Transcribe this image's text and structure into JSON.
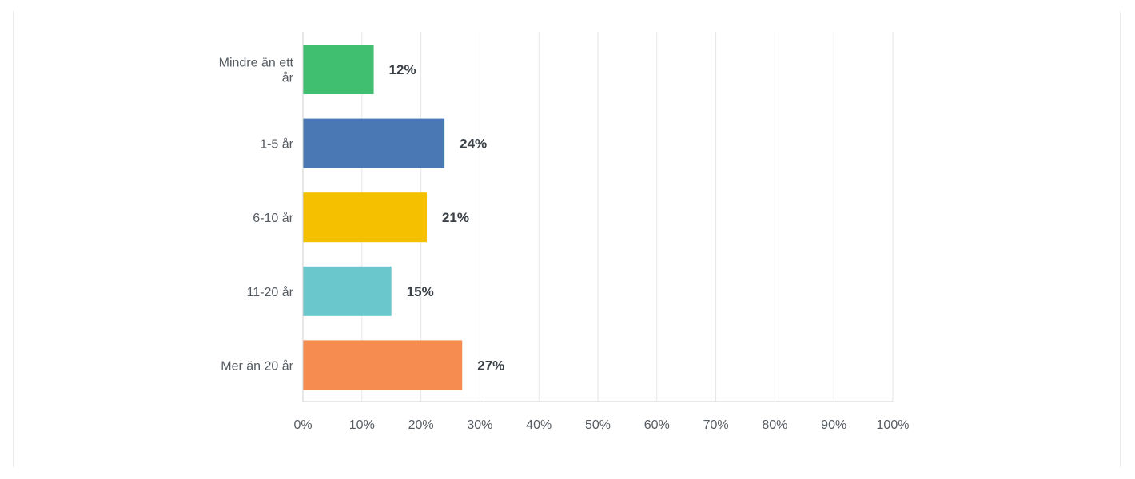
{
  "chart_data": {
    "type": "bar",
    "orientation": "horizontal",
    "categories": [
      [
        "Mindre än ett",
        "år"
      ],
      [
        "1-5 år"
      ],
      [
        "6-10 år"
      ],
      [
        "11-20 år"
      ],
      [
        "Mer än 20 år"
      ]
    ],
    "values": [
      12,
      24,
      21,
      15,
      27
    ],
    "value_labels": [
      "12%",
      "24%",
      "21%",
      "15%",
      "27%"
    ],
    "colors": [
      "#3fbf6f",
      "#4a78b5",
      "#f5c000",
      "#6ac8cc",
      "#f68c50"
    ],
    "x_ticks": [
      "0%",
      "10%",
      "20%",
      "30%",
      "40%",
      "50%",
      "60%",
      "70%",
      "80%",
      "90%",
      "100%"
    ],
    "xlim": [
      0,
      100
    ],
    "grid": true,
    "legend": "none"
  }
}
